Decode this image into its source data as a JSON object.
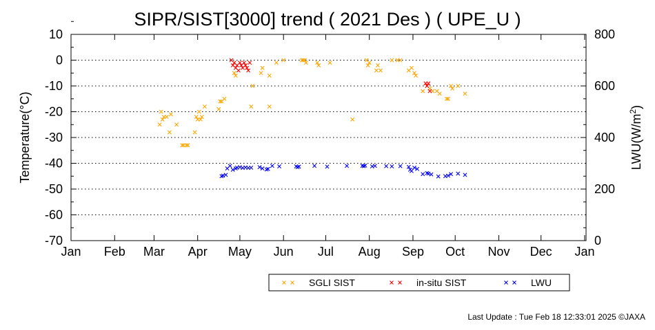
{
  "chart_data": {
    "type": "scatter",
    "title": "SIPR/SIST[3000] trend ( 2021 Des ) ( UPE_U )",
    "ylabel": "Temperature(°C)",
    "y2label_main": "LWU(W/m",
    "y2label_sup": "2",
    "y2label_close": ")",
    "ylim": [
      -70,
      10
    ],
    "y2lim": [
      0,
      800
    ],
    "xlim": [
      0,
      366
    ],
    "grid": "horizontal dotted",
    "legend_position": "bottom",
    "yticks": [
      "10",
      "0",
      "-10",
      "-20",
      "-30",
      "-40",
      "-50",
      "-60",
      "-70"
    ],
    "y2ticks": [
      "800",
      "600",
      "400",
      "200",
      "0"
    ],
    "months": [
      "Jan",
      "Feb",
      "Mar",
      "Apr",
      "May",
      "Jun",
      "Jul",
      "Aug",
      "Sep",
      "Oct",
      "Nov",
      "Dec",
      "Jan"
    ],
    "series": [
      {
        "name": "SGLI SIST",
        "axis": "left",
        "color": "#ffa500",
        "points": [
          [
            63,
            -25
          ],
          [
            64,
            -20
          ],
          [
            65,
            -23
          ],
          [
            66,
            -22
          ],
          [
            68,
            -22
          ],
          [
            70,
            -28
          ],
          [
            71,
            -21
          ],
          [
            75,
            -25
          ],
          [
            79,
            -33
          ],
          [
            80,
            -33
          ],
          [
            82,
            -33
          ],
          [
            83,
            -33
          ],
          [
            88,
            -28
          ],
          [
            89,
            -22
          ],
          [
            90,
            -23
          ],
          [
            91,
            -20
          ],
          [
            92,
            -23
          ],
          [
            93,
            -22
          ],
          [
            95,
            -18
          ],
          [
            105,
            -19
          ],
          [
            106,
            -16
          ],
          [
            107,
            -16
          ],
          [
            109,
            -15
          ],
          [
            116,
            -5
          ],
          [
            117,
            -6
          ],
          [
            128,
            -18
          ],
          [
            129,
            -10
          ],
          [
            135,
            -5
          ],
          [
            136,
            -3
          ],
          [
            141,
            -6
          ],
          [
            141,
            -18
          ],
          [
            146,
            -1
          ],
          [
            151,
            0
          ],
          [
            164,
            0
          ],
          [
            165,
            0
          ],
          [
            166,
            0
          ],
          [
            167,
            -1
          ],
          [
            175,
            -1
          ],
          [
            176,
            -2
          ],
          [
            184,
            -1
          ],
          [
            200,
            -23
          ],
          [
            210,
            0
          ],
          [
            211,
            -2
          ],
          [
            212,
            -1
          ],
          [
            217,
            -4
          ],
          [
            218,
            -2
          ],
          [
            220,
            -4
          ],
          [
            228,
            0
          ],
          [
            232,
            0
          ],
          [
            234,
            0
          ],
          [
            240,
            -4
          ],
          [
            242,
            -3
          ],
          [
            244,
            -5
          ],
          [
            245,
            -6
          ],
          [
            250,
            -12
          ],
          [
            253,
            -10
          ],
          [
            255,
            -11
          ],
          [
            257,
            -12
          ],
          [
            260,
            -12
          ],
          [
            262,
            -13
          ],
          [
            267,
            -15
          ],
          [
            268,
            -15
          ],
          [
            270,
            -10
          ],
          [
            271,
            -11
          ],
          [
            275,
            -10
          ],
          [
            280,
            -13
          ]
        ]
      },
      {
        "name": "in-situ SIST",
        "axis": "left",
        "color": "#ff0000",
        "points": [
          [
            114,
            0
          ],
          [
            115,
            -2
          ],
          [
            116,
            -1
          ],
          [
            117,
            -3
          ],
          [
            118,
            -2
          ],
          [
            119,
            -4
          ],
          [
            120,
            -1
          ],
          [
            121,
            -2
          ],
          [
            122,
            -3
          ],
          [
            123,
            -1
          ],
          [
            124,
            -2
          ],
          [
            125,
            -3
          ],
          [
            126,
            -4
          ],
          [
            127,
            -1
          ],
          [
            252,
            -9
          ],
          [
            253,
            -10
          ],
          [
            254,
            -9
          ],
          [
            255,
            -12
          ]
        ]
      },
      {
        "name": "LWU",
        "axis": "right",
        "color": "#0000ff",
        "points": [
          [
            107,
            250
          ],
          [
            108,
            252
          ],
          [
            110,
            255
          ],
          [
            111,
            280
          ],
          [
            113,
            290
          ],
          [
            115,
            275
          ],
          [
            117,
            280
          ],
          [
            118,
            283
          ],
          [
            120,
            285
          ],
          [
            122,
            282
          ],
          [
            124,
            284
          ],
          [
            126,
            282
          ],
          [
            128,
            283
          ],
          [
            134,
            285
          ],
          [
            136,
            280
          ],
          [
            139,
            276
          ],
          [
            140,
            278
          ],
          [
            143,
            290
          ],
          [
            148,
            288
          ],
          [
            160,
            288
          ],
          [
            161,
            285
          ],
          [
            162,
            287
          ],
          [
            173,
            290
          ],
          [
            182,
            287
          ],
          [
            196,
            290
          ],
          [
            207,
            290
          ],
          [
            208,
            289
          ],
          [
            209,
            291
          ],
          [
            214,
            288
          ],
          [
            216,
            290
          ],
          [
            224,
            289
          ],
          [
            228,
            288
          ],
          [
            234,
            289
          ],
          [
            240,
            286
          ],
          [
            241,
            275
          ],
          [
            242,
            270
          ],
          [
            244,
            283
          ],
          [
            246,
            278
          ],
          [
            250,
            258
          ],
          [
            253,
            262
          ],
          [
            254,
            260
          ],
          [
            256,
            257
          ],
          [
            261,
            249
          ],
          [
            266,
            250
          ],
          [
            268,
            252
          ],
          [
            270,
            258
          ],
          [
            275,
            260
          ],
          [
            280,
            255
          ]
        ]
      }
    ],
    "footer": "Last Update : Tue Feb 18 12:33:01 2025  ©JAXA"
  }
}
